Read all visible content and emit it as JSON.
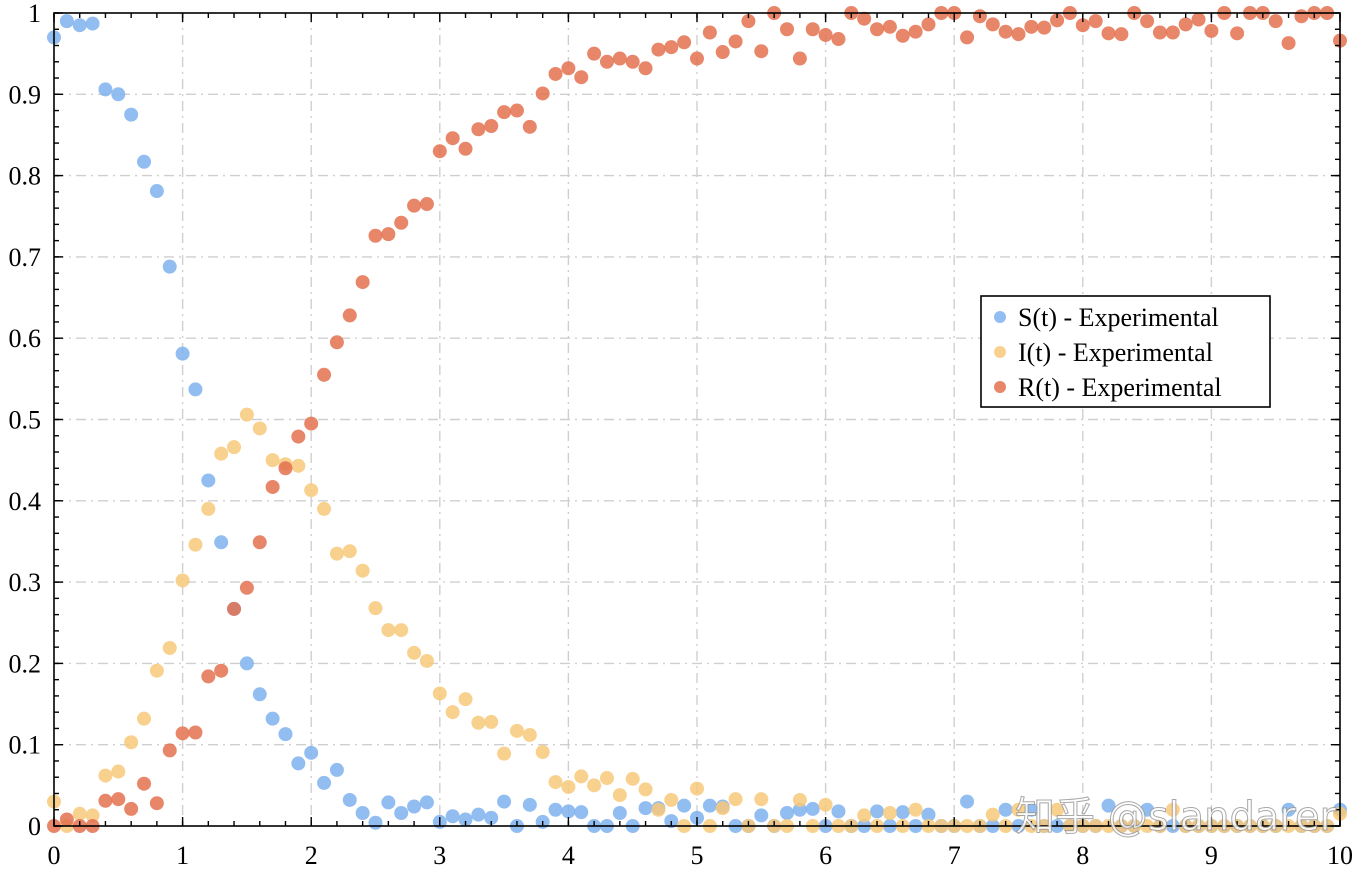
{
  "watermark": "知乎 @slandarer",
  "chart_data": {
    "type": "scatter",
    "title": "",
    "xlabel": "",
    "ylabel": "",
    "xlim": [
      0,
      10
    ],
    "ylim": [
      0,
      1
    ],
    "x_ticks": [
      0,
      1,
      2,
      3,
      4,
      5,
      6,
      7,
      8,
      9,
      10
    ],
    "x_tick_labels": [
      "0",
      "1",
      "2",
      "3",
      "4",
      "5",
      "6",
      "7",
      "8",
      "9",
      "10"
    ],
    "y_ticks": [
      0,
      0.1,
      0.2,
      0.3,
      0.4,
      0.5,
      0.6,
      0.7,
      0.8,
      0.9,
      1
    ],
    "y_tick_labels": [
      "0",
      "0.1",
      "0.2",
      "0.3",
      "0.4",
      "0.5",
      "0.6",
      "0.7",
      "0.8",
      "0.9",
      "1"
    ],
    "grid": true,
    "legend_position": "center-right",
    "x": [
      0,
      0.1,
      0.2,
      0.3,
      0.4,
      0.5,
      0.6,
      0.7,
      0.8,
      0.9,
      1,
      1.1,
      1.2,
      1.3,
      1.4,
      1.5,
      1.6,
      1.7,
      1.8,
      1.9,
      2,
      2.1,
      2.2,
      2.3,
      2.4,
      2.5,
      2.6,
      2.7,
      2.8,
      2.9,
      3,
      3.1,
      3.2,
      3.3,
      3.4,
      3.5,
      3.6,
      3.7,
      3.8,
      3.9,
      4,
      4.1,
      4.2,
      4.3,
      4.4,
      4.5,
      4.6,
      4.7,
      4.8,
      4.9,
      5,
      5.1,
      5.2,
      5.3,
      5.4,
      5.5,
      5.6,
      5.7,
      5.8,
      5.9,
      6,
      6.1,
      6.2,
      6.3,
      6.4,
      6.5,
      6.6,
      6.7,
      6.8,
      6.9,
      7,
      7.1,
      7.2,
      7.3,
      7.4,
      7.5,
      7.6,
      7.7,
      7.8,
      7.9,
      8,
      8.1,
      8.2,
      8.3,
      8.4,
      8.5,
      8.6,
      8.7,
      8.8,
      8.9,
      9,
      9.1,
      9.2,
      9.3,
      9.4,
      9.5,
      9.6,
      9.7,
      9.8,
      9.9,
      10
    ],
    "series": [
      {
        "name": "S(t) - Experimental",
        "color": "#7fb2ee",
        "values": [
          0.97,
          0.99,
          0.985,
          0.987,
          0.906,
          0.9,
          0.875,
          0.817,
          0.781,
          0.688,
          0.581,
          0.537,
          0.425,
          0.349,
          0.267,
          0.2,
          0.162,
          0.132,
          0.113,
          0.077,
          0.09,
          0.053,
          0.069,
          0.032,
          0.016,
          0.004,
          0.029,
          0.016,
          0.024,
          0.029,
          0.005,
          0.012,
          0.008,
          0.014,
          0.01,
          0.03,
          0.0,
          0.026,
          0.005,
          0.02,
          0.018,
          0.017,
          0.0,
          0.0,
          0.016,
          0.0,
          0.022,
          0.022,
          0.006,
          0.025,
          0.01,
          0.025,
          0.024,
          0.0,
          0.0,
          0.013,
          0.0,
          0.016,
          0.02,
          0.021,
          0.0,
          0.018,
          0.0,
          0.0,
          0.018,
          0.0,
          0.017,
          0.0,
          0.014,
          0.0,
          0.0,
          0.03,
          0.0,
          0.0,
          0.02,
          0.0,
          0.02,
          0.0,
          0.0,
          0.0,
          0.0,
          0.0,
          0.025,
          0.0,
          0.0,
          0.02,
          0.0,
          0.0,
          0.0,
          0.0,
          0.0,
          0.0,
          0.0,
          0.0,
          0.0,
          0.0,
          0.02,
          0.0,
          0.0,
          0.0,
          0.02
        ]
      },
      {
        "name": "I(t)  - Experimental",
        "color": "#f8c97a",
        "values": [
          0.03,
          0.0,
          0.015,
          0.013,
          0.062,
          0.067,
          0.103,
          0.132,
          0.191,
          0.219,
          0.302,
          0.346,
          0.39,
          0.458,
          0.466,
          0.506,
          0.489,
          0.45,
          0.445,
          0.443,
          0.413,
          0.39,
          0.335,
          0.338,
          0.314,
          0.268,
          0.241,
          0.241,
          0.213,
          0.203,
          0.163,
          0.14,
          0.156,
          0.127,
          0.128,
          0.089,
          0.117,
          0.112,
          0.091,
          0.054,
          0.048,
          0.061,
          0.05,
          0.059,
          0.038,
          0.058,
          0.045,
          0.02,
          0.032,
          0.0,
          0.046,
          0.0,
          0.022,
          0.033,
          0.0,
          0.033,
          0.0,
          0.0,
          0.032,
          0.0,
          0.026,
          0.0,
          0.0,
          0.013,
          0.0,
          0.016,
          0.0,
          0.02,
          0.0,
          0.0,
          0.0,
          0.0,
          0.0,
          0.014,
          0.0,
          0.02,
          0.0,
          0.0,
          0.02,
          0.0,
          0.0,
          0.0,
          0.0,
          0.0,
          0.0,
          0.0,
          0.0,
          0.02,
          0.0,
          0.0,
          0.0,
          0.0,
          0.0,
          0.0,
          0.0,
          0.0,
          0.0,
          0.0,
          0.0,
          0.0,
          0.015
        ]
      },
      {
        "name": "R(t) - Experimental",
        "color": "#e3714f",
        "values": [
          0.0,
          0.008,
          0.0,
          0.0,
          0.031,
          0.033,
          0.021,
          0.052,
          0.028,
          0.093,
          0.114,
          0.115,
          0.184,
          0.191,
          0.267,
          0.293,
          0.349,
          0.417,
          0.44,
          0.479,
          0.495,
          0.555,
          0.595,
          0.628,
          0.669,
          0.726,
          0.728,
          0.742,
          0.763,
          0.765,
          0.83,
          0.846,
          0.833,
          0.857,
          0.861,
          0.878,
          0.88,
          0.86,
          0.901,
          0.925,
          0.932,
          0.921,
          0.95,
          0.94,
          0.944,
          0.94,
          0.932,
          0.955,
          0.958,
          0.964,
          0.944,
          0.976,
          0.952,
          0.965,
          0.99,
          0.953,
          1.0,
          0.98,
          0.944,
          0.98,
          0.973,
          0.968,
          1.0,
          0.993,
          0.98,
          0.983,
          0.972,
          0.977,
          0.986,
          1.0,
          1.0,
          0.97,
          0.996,
          0.986,
          0.977,
          0.974,
          0.983,
          0.982,
          0.991,
          1.0,
          0.985,
          0.99,
          0.975,
          0.974,
          1.0,
          0.99,
          0.976,
          0.976,
          0.986,
          0.992,
          0.978,
          1.0,
          0.975,
          1.0,
          1.0,
          0.99,
          0.963,
          0.996,
          1.0,
          1.0,
          0.966
        ]
      }
    ]
  }
}
